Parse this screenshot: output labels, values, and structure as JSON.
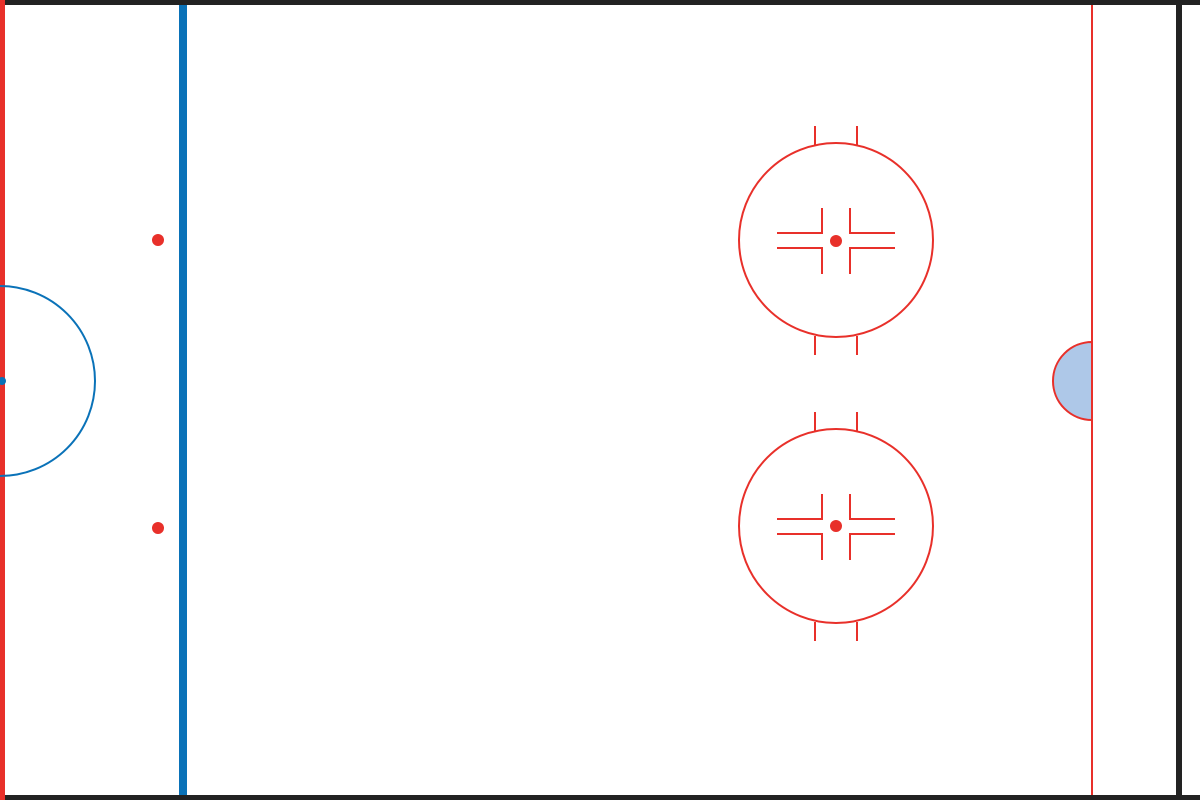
{
  "diagram": {
    "type": "ice-hockey-rink-half",
    "colors": {
      "ice": "#ffffff",
      "boards": "#222222",
      "red_line": "#e8302a",
      "blue_line": "#0a72b8",
      "goal_crease_fill": "#aec8e8",
      "face_off_marking": "#e8302a"
    },
    "elements": {
      "center_red_line": "center-red-line",
      "center_ice_circle": "center-faceoff-circle",
      "blue_line": "blue-line",
      "neutral_zone_faceoff_spots": 2,
      "end_zone_faceoff_circles": 2,
      "goal_line": "goal-line",
      "goal_crease": "goal-crease"
    }
  }
}
